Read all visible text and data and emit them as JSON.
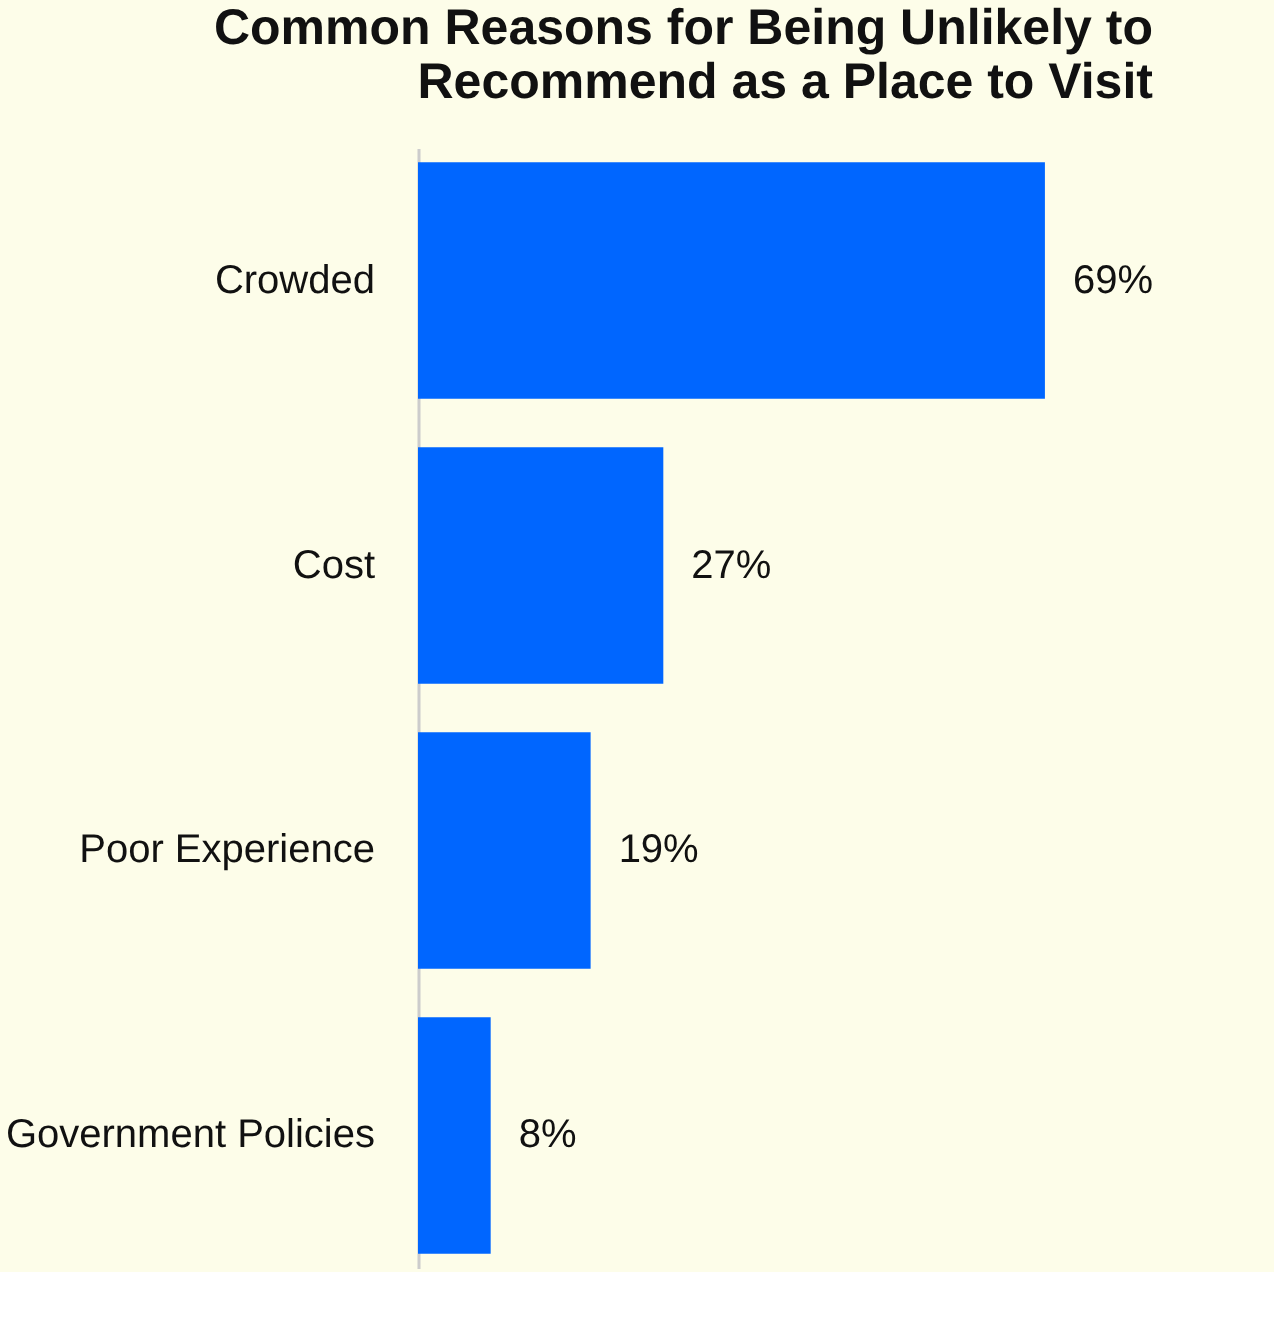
{
  "chart_data": {
    "type": "bar",
    "orientation": "horizontal",
    "title": "Common Reasons for Being Unlikely to Recommend as a Place to Visit",
    "categories": [
      "Crowded",
      "Cost",
      "Poor Experience",
      "Government Policies"
    ],
    "values": [
      69,
      27,
      19,
      8
    ],
    "color": "#0066ff",
    "data_labels": true,
    "value_labels": [
      "69%",
      "27%",
      "19%",
      "8%"
    ]
  }
}
